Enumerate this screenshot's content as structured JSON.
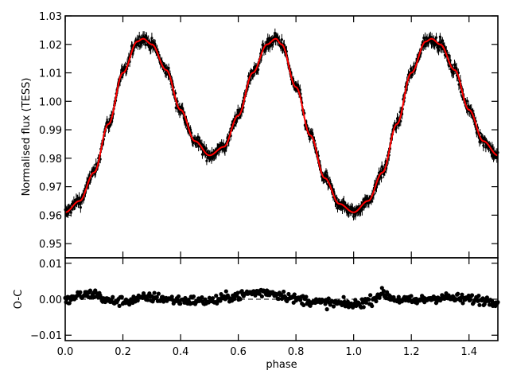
{
  "chart_data": [
    {
      "type": "scatter",
      "panel": "top",
      "xlabel": "",
      "ylabel": "Normalised flux (TESS)",
      "xlim": [
        0.0,
        1.5
      ],
      "ylim": [
        0.945,
        1.03
      ],
      "x_ticks": [
        0.0,
        0.2,
        0.4,
        0.6,
        0.8,
        1.0,
        1.2,
        1.4
      ],
      "x_tick_labels_shown": false,
      "y_ticks": [
        0.95,
        0.96,
        0.97,
        0.98,
        0.99,
        1.0,
        1.01,
        1.02,
        1.03
      ],
      "y_tick_labels": [
        "0.95",
        "0.96",
        "0.97",
        "0.98",
        "0.99",
        "1.00",
        "1.01",
        "1.02",
        "1.03"
      ],
      "grid": false,
      "legend": "none",
      "series": [
        {
          "kind": "observed data (error bars, dense)",
          "color": "#000000",
          "x": [
            0.0,
            0.05,
            0.1,
            0.15,
            0.2,
            0.25,
            0.27,
            0.3,
            0.35,
            0.4,
            0.45,
            0.5,
            0.55,
            0.6,
            0.65,
            0.7,
            0.73,
            0.75,
            0.8,
            0.85,
            0.9,
            0.95,
            1.0,
            1.05,
            1.1,
            1.15,
            1.2,
            1.25,
            1.27,
            1.3,
            1.35,
            1.4,
            1.45,
            1.5
          ],
          "y": [
            0.961,
            0.965,
            0.975,
            0.992,
            1.01,
            1.021,
            1.022,
            1.02,
            1.011,
            0.997,
            0.986,
            0.981,
            0.984,
            0.995,
            1.01,
            1.02,
            1.022,
            1.02,
            1.005,
            0.988,
            0.973,
            0.964,
            0.961,
            0.965,
            0.975,
            0.992,
            1.01,
            1.021,
            1.022,
            1.02,
            1.011,
            0.997,
            0.986,
            0.981
          ],
          "scatter_half_width": 0.0015
        },
        {
          "kind": "model fit (line)",
          "color": "#ff0000",
          "x": [
            0.0,
            0.05,
            0.1,
            0.15,
            0.2,
            0.25,
            0.27,
            0.3,
            0.35,
            0.4,
            0.45,
            0.5,
            0.55,
            0.6,
            0.65,
            0.7,
            0.73,
            0.75,
            0.8,
            0.85,
            0.9,
            0.95,
            1.0,
            1.05,
            1.1,
            1.15,
            1.2,
            1.25,
            1.27,
            1.3,
            1.35,
            1.4,
            1.45,
            1.5
          ],
          "y": [
            0.961,
            0.965,
            0.975,
            0.992,
            1.01,
            1.021,
            1.022,
            1.02,
            1.011,
            0.997,
            0.986,
            0.981,
            0.984,
            0.995,
            1.01,
            1.02,
            1.022,
            1.02,
            1.005,
            0.988,
            0.973,
            0.964,
            0.961,
            0.965,
            0.975,
            0.992,
            1.01,
            1.021,
            1.022,
            1.02,
            1.011,
            0.997,
            0.986,
            0.981
          ]
        }
      ]
    },
    {
      "type": "scatter",
      "panel": "bottom",
      "xlabel": "phase",
      "ylabel": "O-C",
      "xlim": [
        0.0,
        1.5
      ],
      "ylim": [
        -0.0115,
        0.0115
      ],
      "x_ticks": [
        0.0,
        0.2,
        0.4,
        0.6,
        0.8,
        1.0,
        1.2,
        1.4
      ],
      "x_tick_labels": [
        "0.0",
        "0.2",
        "0.4",
        "0.6",
        "0.8",
        "1.0",
        "1.2",
        "1.4"
      ],
      "y_ticks": [
        -0.01,
        0.0,
        0.01
      ],
      "y_tick_labels": [
        "−0.01",
        "0.00",
        "0.01"
      ],
      "grid": false,
      "legend": "none",
      "reference_line": {
        "y": 0.0,
        "style": "dashed",
        "color": "#000000"
      },
      "series": [
        {
          "kind": "residuals (points)",
          "color": "#000000",
          "x": [
            0.0,
            0.05,
            0.1,
            0.15,
            0.2,
            0.3,
            0.4,
            0.5,
            0.6,
            0.65,
            0.7,
            0.75,
            0.8,
            0.9,
            1.0,
            1.05,
            1.1,
            1.15,
            1.2,
            1.3,
            1.4,
            1.5
          ],
          "y": [
            -0.0005,
            0.001,
            0.0015,
            -0.0005,
            -0.0005,
            0.0005,
            -0.0003,
            -0.0005,
            0.001,
            0.0018,
            0.002,
            0.0012,
            0.0,
            -0.001,
            -0.0015,
            -0.0005,
            0.0015,
            0.0,
            -0.0005,
            0.0005,
            0.0,
            -0.0005
          ],
          "scatter_half_width": 0.0015
        }
      ]
    }
  ]
}
